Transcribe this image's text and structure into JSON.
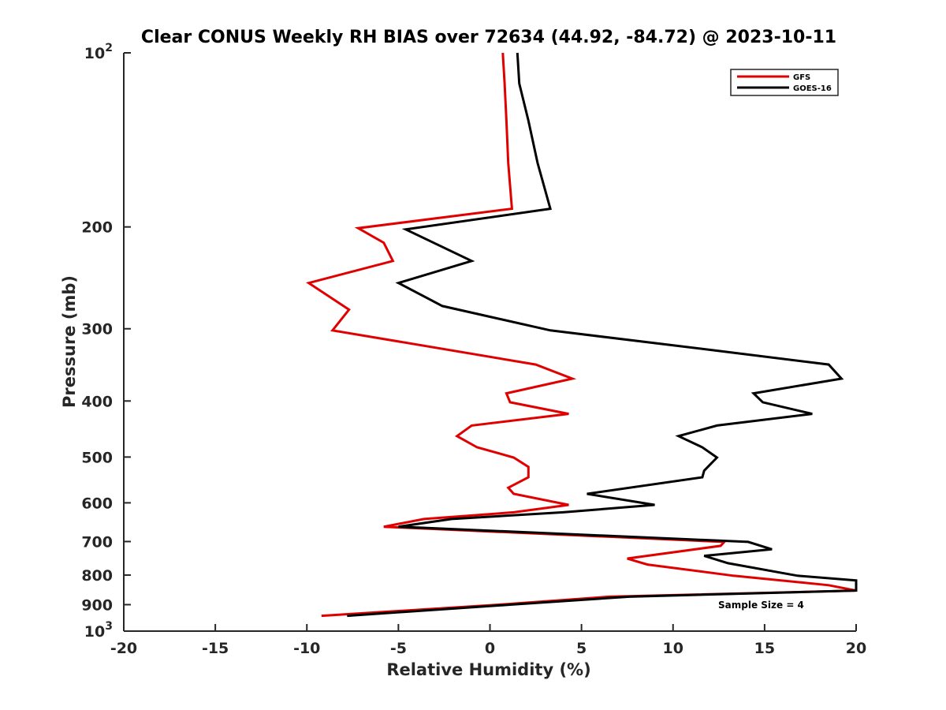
{
  "chart_data": {
    "type": "line",
    "title": "Clear CONUS Weekly RH BIAS over 72634 (44.92, -84.72) @ 2023-10-11",
    "xlabel": "Relative Humidity (%)",
    "ylabel": "Pressure (mb)",
    "xlim": [
      -20,
      20
    ],
    "ylim": [
      100,
      1000
    ],
    "yscale": "log",
    "ydirection": "reverse",
    "x_ticks": [
      -20,
      -15,
      -10,
      -5,
      0,
      5,
      10,
      15,
      20
    ],
    "x_tick_labels": [
      "-20",
      "-15",
      "-10",
      "-5",
      "0",
      "5",
      "10",
      "15",
      "20"
    ],
    "y_ticks": [
      200,
      300,
      400,
      500,
      600,
      700,
      800,
      900
    ],
    "y_tick_labels": [
      "200",
      "300",
      "400",
      "500",
      "600",
      "700",
      "800",
      "900"
    ],
    "y_top_label": {
      "base": "10",
      "exp": "2"
    },
    "y_bottom_label": {
      "base": "10",
      "exp": "3"
    },
    "legend_position": "top-right",
    "annotation": "Sample Size = 4",
    "series": [
      {
        "name": "GFS",
        "color": "#e00000",
        "points": [
          [
            0.7,
            100
          ],
          [
            0.8,
            113
          ],
          [
            0.9,
            131
          ],
          [
            1.0,
            155
          ],
          [
            1.2,
            186
          ],
          [
            -7.2,
            201
          ],
          [
            -5.8,
            213
          ],
          [
            -5.3,
            229
          ],
          [
            -9.9,
            250
          ],
          [
            -7.7,
            278
          ],
          [
            -8.6,
            302
          ],
          [
            2.5,
            346
          ],
          [
            4.5,
            366
          ],
          [
            0.9,
            388
          ],
          [
            1.1,
            402
          ],
          [
            4.3,
            421
          ],
          [
            -1.0,
            441
          ],
          [
            -1.8,
            460
          ],
          [
            -0.7,
            481
          ],
          [
            1.3,
            501
          ],
          [
            2.1,
            520
          ],
          [
            2.1,
            542
          ],
          [
            1.0,
            565
          ],
          [
            1.3,
            579
          ],
          [
            4.3,
            605
          ],
          [
            1.3,
            623
          ],
          [
            -3.6,
            640
          ],
          [
            -5.8,
            660
          ],
          [
            12.8,
            701
          ],
          [
            12.6,
            712
          ],
          [
            7.5,
            749
          ],
          [
            8.6,
            767
          ],
          [
            13.3,
            802
          ],
          [
            18.5,
            833
          ],
          [
            20,
            851
          ],
          [
            6.5,
            872
          ],
          [
            0.5,
            900
          ],
          [
            -9.2,
            941
          ]
        ]
      },
      {
        "name": "GOES-16",
        "color": "#000000",
        "points": [
          [
            1.5,
            100
          ],
          [
            1.6,
            113
          ],
          [
            2.1,
            131
          ],
          [
            2.6,
            155
          ],
          [
            3.3,
            186
          ],
          [
            -4.6,
            202
          ],
          [
            -1.0,
            229
          ],
          [
            -5.0,
            250
          ],
          [
            -2.6,
            274
          ],
          [
            3.3,
            302
          ],
          [
            12.3,
            327
          ],
          [
            18.5,
            346
          ],
          [
            19.2,
            366
          ],
          [
            14.4,
            388
          ],
          [
            14.9,
            402
          ],
          [
            17.6,
            421
          ],
          [
            12.4,
            441
          ],
          [
            10.3,
            460
          ],
          [
            11.6,
            481
          ],
          [
            12.4,
            501
          ],
          [
            12.0,
            516
          ],
          [
            11.7,
            528
          ],
          [
            11.6,
            542
          ],
          [
            5.3,
            579
          ],
          [
            9.0,
            605
          ],
          [
            4.0,
            623
          ],
          [
            -2.1,
            640
          ],
          [
            -5.0,
            660
          ],
          [
            14.1,
            701
          ],
          [
            15.4,
            722
          ],
          [
            11.7,
            741
          ],
          [
            13.0,
            763
          ],
          [
            16.8,
            802
          ],
          [
            20,
            817
          ],
          [
            20,
            851
          ],
          [
            7.6,
            872
          ],
          [
            1.1,
            900
          ],
          [
            -7.8,
            941
          ]
        ]
      }
    ]
  }
}
